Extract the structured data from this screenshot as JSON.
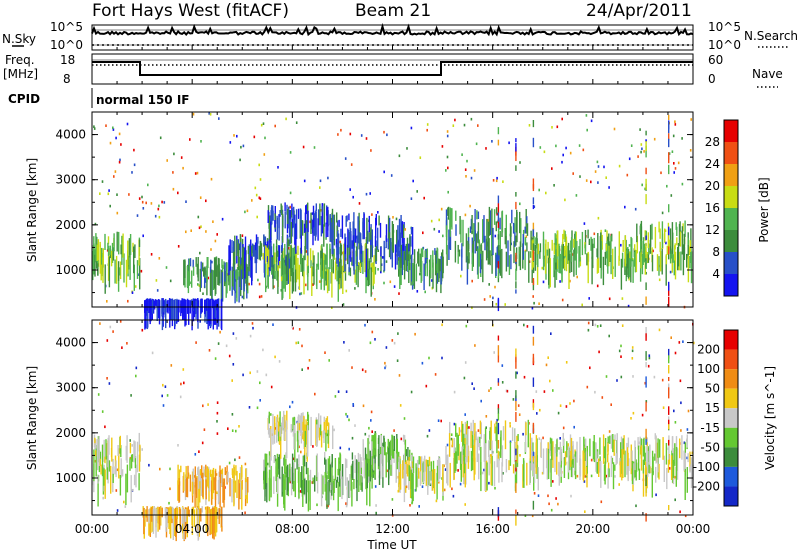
{
  "header": {
    "radar": "Fort Hays West (fitACF)",
    "beam": "Beam 21",
    "date": "24/Apr/2011"
  },
  "aux": {
    "nsky_label": "N.Sky",
    "nsearch_label": "N.Search",
    "noise_ticks": [
      "10^5",
      "10^0"
    ],
    "noise_ticks_right": [
      "10^5",
      "10^0"
    ],
    "freq_label_line1": "Freq.",
    "freq_label_line2": "[MHz]",
    "freq_ticks": [
      "18",
      "8"
    ],
    "nave_ticks": [
      "60",
      "0"
    ],
    "nave_label": "Nave",
    "cpid_label": "CPID",
    "cpid_value": "normal 150 IF"
  },
  "colors": {
    "power": [
      "#1414f0",
      "#2850c8",
      "#3c8c3c",
      "#50b450",
      "#c8dc14",
      "#f0a014",
      "#f05014",
      "#e60000"
    ],
    "velocity": [
      "#1428c8",
      "#1e5adc",
      "#3c8c3c",
      "#64c832",
      "#c8c8c8",
      "#f0c814",
      "#f08c14",
      "#f05014",
      "#e60000"
    ]
  },
  "chart_data": [
    {
      "type": "heatmap",
      "title": "Power",
      "ylabel": "Slant Range [km]",
      "xlabel": "Time UT",
      "x_ticks": [
        "00:00",
        "04:00",
        "08:00",
        "12:00",
        "16:00",
        "20:00",
        "00:00"
      ],
      "y_ticks": [
        "1000",
        "2000",
        "3000",
        "4000"
      ],
      "ylim": [
        180,
        4500
      ],
      "colorbar_label": "Power [dB]",
      "colorbar_ticks": [
        "4",
        "8",
        "12",
        "16",
        "20",
        "24",
        "28"
      ],
      "bands": [
        {
          "t0": 0.0,
          "t1": 1.9,
          "r0": 1050,
          "r1": 1850,
          "level": 3
        },
        {
          "t0": 3.6,
          "t1": 6.2,
          "r0": 950,
          "r1": 1300,
          "level": 2
        },
        {
          "t0": 5.4,
          "t1": 7.9,
          "r0": 1300,
          "r1": 1800,
          "level": 1
        },
        {
          "t0": 6.8,
          "t1": 11.3,
          "r0": 950,
          "r1": 1600,
          "level": 3
        },
        {
          "t0": 7.0,
          "t1": 9.6,
          "r0": 2000,
          "r1": 2500,
          "level": 1
        },
        {
          "t0": 9.5,
          "t1": 12.8,
          "r0": 1500,
          "r1": 2300,
          "level": 1
        },
        {
          "t0": 12.2,
          "t1": 14.0,
          "r0": 1100,
          "r1": 1500,
          "level": 2
        },
        {
          "t0": 14.1,
          "t1": 17.4,
          "r0": 1300,
          "r1": 2400,
          "level": 2
        },
        {
          "t0": 17.4,
          "t1": 21.6,
          "r0": 1200,
          "r1": 1900,
          "level": 3
        },
        {
          "t0": 21.6,
          "t1": 24.0,
          "r0": 1300,
          "r1": 2100,
          "level": 3
        },
        {
          "t0": 2.0,
          "t1": 5.2,
          "r0": 320,
          "r1": 380,
          "level": 0
        }
      ]
    },
    {
      "type": "heatmap",
      "title": "Velocity",
      "ylabel": "Slant Range [km]",
      "xlabel": "Time UT",
      "x_ticks": [
        "00:00",
        "04:00",
        "08:00",
        "12:00",
        "16:00",
        "20:00",
        "00:00"
      ],
      "y_ticks": [
        "1000",
        "2000",
        "3000",
        "4000"
      ],
      "ylim": [
        180,
        4500
      ],
      "colorbar_label": "Velocity [m s^-1]",
      "colorbar_ticks": [
        "200",
        "100",
        "50",
        "15",
        "-15",
        "-50",
        "-100",
        "-200"
      ],
      "bands": [
        {
          "t0": 0.0,
          "t1": 1.9,
          "r0": 1050,
          "r1": 2000,
          "level": 4
        },
        {
          "t0": 3.4,
          "t1": 6.2,
          "r0": 900,
          "r1": 1300,
          "level": 5
        },
        {
          "t0": 6.8,
          "t1": 11.3,
          "r0": 900,
          "r1": 1600,
          "level": 3
        },
        {
          "t0": 7.0,
          "t1": 9.6,
          "r0": 2000,
          "r1": 2500,
          "level": 4
        },
        {
          "t0": 10.8,
          "t1": 12.8,
          "r0": 1400,
          "r1": 2000,
          "level": 3
        },
        {
          "t0": 12.2,
          "t1": 14.0,
          "r0": 1100,
          "r1": 1500,
          "level": 4
        },
        {
          "t0": 14.1,
          "t1": 17.4,
          "r0": 1300,
          "r1": 2300,
          "level": 4
        },
        {
          "t0": 17.4,
          "t1": 24.0,
          "r0": 1200,
          "r1": 2000,
          "level": 4
        },
        {
          "t0": 2.0,
          "t1": 5.2,
          "r0": 300,
          "r1": 380,
          "level": 5
        }
      ]
    }
  ]
}
